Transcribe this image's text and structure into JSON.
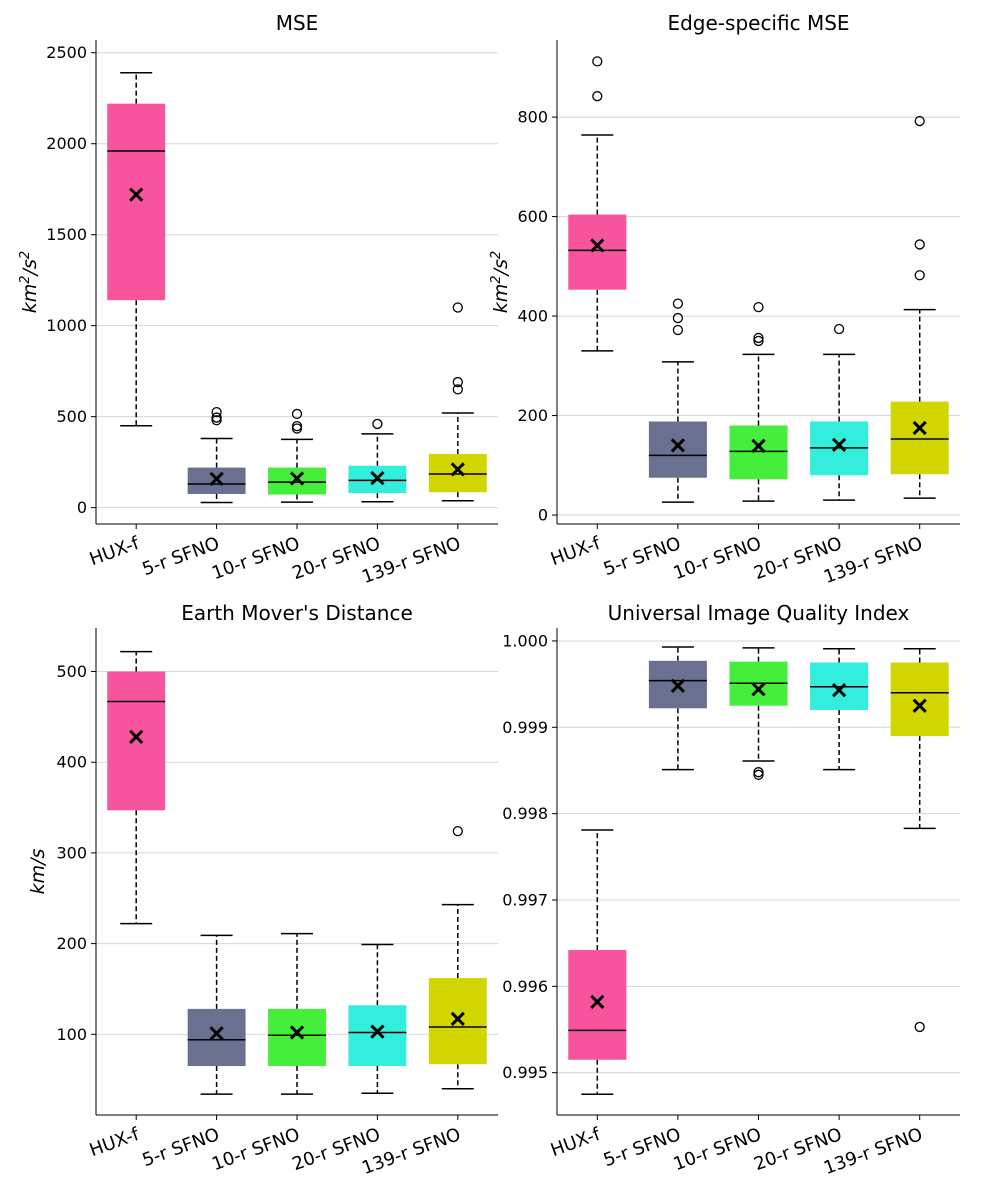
{
  "categories": [
    "HUX-f",
    "5-r SFNO",
    "10-r SFNO",
    "20-r SFNO",
    "139-r SFNO"
  ],
  "colors": [
    "#f8549e",
    "#6a7090",
    "#44ee3a",
    "#33eedd",
    "#d2d600"
  ],
  "chart_data": [
    {
      "type": "box",
      "title": "MSE",
      "ylabel_base": "km",
      "ylabel_sup": "2",
      "ylabel_mid": "/s",
      "ylabel_sup2": "2",
      "ylim": [
        -90,
        2570
      ],
      "yticks": [
        0,
        500,
        1000,
        1500,
        2000,
        2500
      ],
      "ytick_labels": [
        "0",
        "500",
        "1000",
        "1500",
        "2000",
        "2500"
      ],
      "boxes": [
        {
          "q1": 1140,
          "median": 1960,
          "q3": 2220,
          "whislo": 450,
          "whishi": 2390,
          "mean": 1720,
          "fliers": []
        },
        {
          "q1": 75,
          "median": 130,
          "q3": 220,
          "whislo": 28,
          "whishi": 380,
          "mean": 158,
          "fliers": [
            480,
            495,
            525
          ]
        },
        {
          "q1": 72,
          "median": 140,
          "q3": 220,
          "whislo": 30,
          "whishi": 375,
          "mean": 160,
          "fliers": [
            435,
            448,
            515
          ]
        },
        {
          "q1": 80,
          "median": 150,
          "q3": 230,
          "whislo": 32,
          "whishi": 405,
          "mean": 162,
          "fliers": [
            460
          ]
        },
        {
          "q1": 85,
          "median": 185,
          "q3": 295,
          "whislo": 38,
          "whishi": 520,
          "mean": 210,
          "fliers": [
            650,
            690,
            1100
          ]
        }
      ]
    },
    {
      "type": "box",
      "title": "Edge-specific MSE",
      "ylabel_base": "km",
      "ylabel_sup": "2",
      "ylabel_mid": "/s",
      "ylabel_sup2": "2",
      "ylim": [
        -18,
        955
      ],
      "yticks": [
        0,
        200,
        400,
        600,
        800
      ],
      "ytick_labels": [
        "0",
        "200",
        "400",
        "600",
        "800"
      ],
      "boxes": [
        {
          "q1": 453,
          "median": 532,
          "q3": 604,
          "whislo": 330,
          "whishi": 764,
          "mean": 542,
          "fliers": [
            842,
            912
          ]
        },
        {
          "q1": 75,
          "median": 120,
          "q3": 188,
          "whislo": 26,
          "whishi": 308,
          "mean": 140,
          "fliers": [
            372,
            396,
            425
          ]
        },
        {
          "q1": 72,
          "median": 128,
          "q3": 180,
          "whislo": 28,
          "whishi": 323,
          "mean": 139,
          "fliers": [
            350,
            356,
            418
          ]
        },
        {
          "q1": 80,
          "median": 135,
          "q3": 188,
          "whislo": 30,
          "whishi": 323,
          "mean": 141,
          "fliers": [
            374
          ]
        },
        {
          "q1": 82,
          "median": 153,
          "q3": 228,
          "whislo": 34,
          "whishi": 413,
          "mean": 175,
          "fliers": [
            482,
            544,
            792
          ]
        }
      ]
    },
    {
      "type": "box",
      "title": "Earth Mover's Distance",
      "ylabel_base": "km/s",
      "ylim": [
        11,
        548
      ],
      "yticks": [
        100,
        200,
        300,
        400,
        500
      ],
      "ytick_labels": [
        "100",
        "200",
        "300",
        "400",
        "500"
      ],
      "boxes": [
        {
          "q1": 347,
          "median": 467,
          "q3": 500,
          "whislo": 222,
          "whishi": 522,
          "mean": 428,
          "fliers": []
        },
        {
          "q1": 65,
          "median": 94,
          "q3": 128,
          "whislo": 34,
          "whishi": 209,
          "mean": 101,
          "fliers": []
        },
        {
          "q1": 65,
          "median": 99,
          "q3": 128,
          "whislo": 34,
          "whishi": 211,
          "mean": 102,
          "fliers": []
        },
        {
          "q1": 65,
          "median": 102,
          "q3": 132,
          "whislo": 35,
          "whishi": 199,
          "mean": 103,
          "fliers": []
        },
        {
          "q1": 67,
          "median": 108,
          "q3": 162,
          "whislo": 40,
          "whishi": 243,
          "mean": 117,
          "fliers": [
            324
          ]
        }
      ]
    },
    {
      "type": "box",
      "title": "Universal Image Quality Index",
      "ylabel_base": "",
      "ylim": [
        0.99451,
        1.00015
      ],
      "yticks": [
        0.995,
        0.996,
        0.997,
        0.998,
        0.999,
        1.0
      ],
      "ytick_labels": [
        "0.995",
        "0.996",
        "0.997",
        "0.998",
        "0.999",
        "1.000"
      ],
      "boxes": [
        {
          "q1": 0.99515,
          "median": 0.99549,
          "q3": 0.99642,
          "whislo": 0.99475,
          "whishi": 0.99781,
          "mean": 0.99582,
          "fliers": []
        },
        {
          "q1": 0.99922,
          "median": 0.99954,
          "q3": 0.99977,
          "whislo": 0.99851,
          "whishi": 0.99993,
          "mean": 0.99948,
          "fliers": []
        },
        {
          "q1": 0.99925,
          "median": 0.99951,
          "q3": 0.99976,
          "whislo": 0.99861,
          "whishi": 0.99992,
          "mean": 0.99944,
          "fliers": [
            0.99845,
            0.99848
          ]
        },
        {
          "q1": 0.9992,
          "median": 0.99947,
          "q3": 0.99975,
          "whislo": 0.99851,
          "whishi": 0.99991,
          "mean": 0.99943,
          "fliers": []
        },
        {
          "q1": 0.9989,
          "median": 0.9994,
          "q3": 0.99975,
          "whislo": 0.99783,
          "whishi": 0.99991,
          "mean": 0.99925,
          "fliers": [
            0.99553
          ]
        }
      ]
    }
  ]
}
